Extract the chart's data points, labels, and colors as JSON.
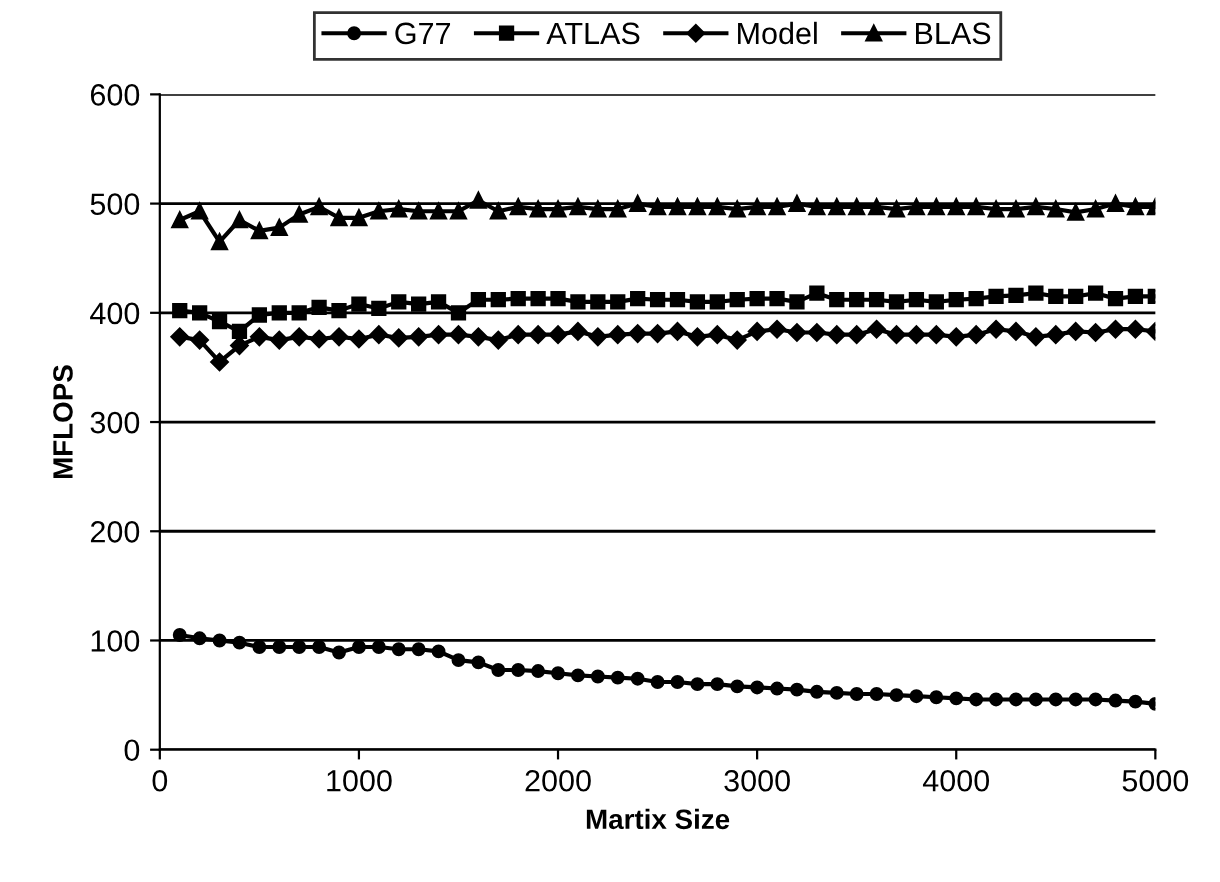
{
  "chart_data": {
    "type": "line",
    "xlabel": "Martix Size",
    "ylabel": "MFLOPS",
    "x": [
      100,
      200,
      300,
      400,
      500,
      600,
      700,
      800,
      900,
      1000,
      1100,
      1200,
      1300,
      1400,
      1500,
      1600,
      1700,
      1800,
      1900,
      2000,
      2100,
      2200,
      2300,
      2400,
      2500,
      2600,
      2700,
      2800,
      2900,
      3000,
      3100,
      3200,
      3300,
      3400,
      3500,
      3600,
      3700,
      3800,
      3900,
      4000,
      4100,
      4200,
      4300,
      4400,
      4500,
      4600,
      4700,
      4800,
      4900,
      5000
    ],
    "series": [
      {
        "name": "G77",
        "color": "#000000",
        "marker": "circle",
        "values": [
          105,
          102,
          100,
          98,
          94,
          94,
          94,
          94,
          89,
          94,
          94,
          92,
          92,
          90,
          82,
          80,
          73,
          73,
          72,
          70,
          68,
          67,
          66,
          65,
          62,
          62,
          60,
          60,
          58,
          57,
          56,
          55,
          53,
          52,
          51,
          51,
          50,
          49,
          48,
          47,
          46,
          46,
          46,
          46,
          46,
          46,
          46,
          45,
          44,
          42
        ]
      },
      {
        "name": "ATLAS",
        "color": "#000000",
        "marker": "square",
        "values": [
          402,
          400,
          392,
          383,
          398,
          400,
          400,
          405,
          402,
          408,
          404,
          410,
          408,
          410,
          400,
          412,
          412,
          413,
          413,
          413,
          410,
          410,
          410,
          413,
          412,
          412,
          410,
          410,
          412,
          413,
          413,
          410,
          418,
          412,
          412,
          412,
          410,
          412,
          410,
          412,
          413,
          415,
          416,
          418,
          415,
          415,
          418,
          413,
          415,
          415
        ]
      },
      {
        "name": "Model",
        "color": "#000000",
        "marker": "diamond",
        "values": [
          378,
          375,
          355,
          370,
          378,
          375,
          378,
          376,
          378,
          376,
          380,
          377,
          378,
          380,
          380,
          378,
          375,
          380,
          380,
          380,
          383,
          378,
          380,
          381,
          381,
          383,
          378,
          380,
          375,
          383,
          385,
          382,
          382,
          380,
          380,
          385,
          380,
          380,
          380,
          378,
          380,
          385,
          383,
          378,
          380,
          383,
          382,
          385,
          385,
          383
        ]
      },
      {
        "name": "BLAS",
        "color": "#000000",
        "marker": "triangle",
        "values": [
          485,
          493,
          465,
          485,
          475,
          478,
          490,
          497,
          487,
          487,
          493,
          495,
          493,
          493,
          493,
          503,
          493,
          497,
          495,
          495,
          497,
          495,
          495,
          500,
          497,
          497,
          497,
          497,
          495,
          497,
          497,
          500,
          497,
          497,
          497,
          497,
          495,
          497,
          497,
          497,
          497,
          495,
          495,
          497,
          495,
          492,
          495,
          500,
          497,
          497
        ]
      }
    ],
    "xlim": [
      0,
      5000
    ],
    "xticks": [
      0,
      1000,
      2000,
      3000,
      4000,
      5000
    ],
    "ylim": [
      0,
      600
    ],
    "yticks": [
      0,
      100,
      200,
      300,
      400,
      500,
      600
    ],
    "grid": "y",
    "legend": "top",
    "line_style": "solid"
  }
}
